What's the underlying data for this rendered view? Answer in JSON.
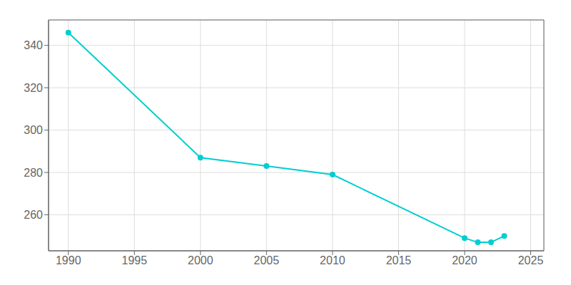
{
  "chart_data": {
    "type": "line",
    "x": [
      1990,
      2000,
      2005,
      2010,
      2020,
      2021,
      2022,
      2023
    ],
    "values": [
      346,
      287,
      283,
      279,
      249,
      247,
      247,
      250
    ],
    "color": "#00CED1",
    "marker": "circle",
    "xlim": [
      1988.5,
      2026
    ],
    "ylim": [
      243,
      352
    ],
    "xticks": [
      1990,
      1995,
      2000,
      2005,
      2010,
      2015,
      2020,
      2025
    ],
    "yticks": [
      260,
      280,
      300,
      320,
      340
    ],
    "grid": true
  }
}
